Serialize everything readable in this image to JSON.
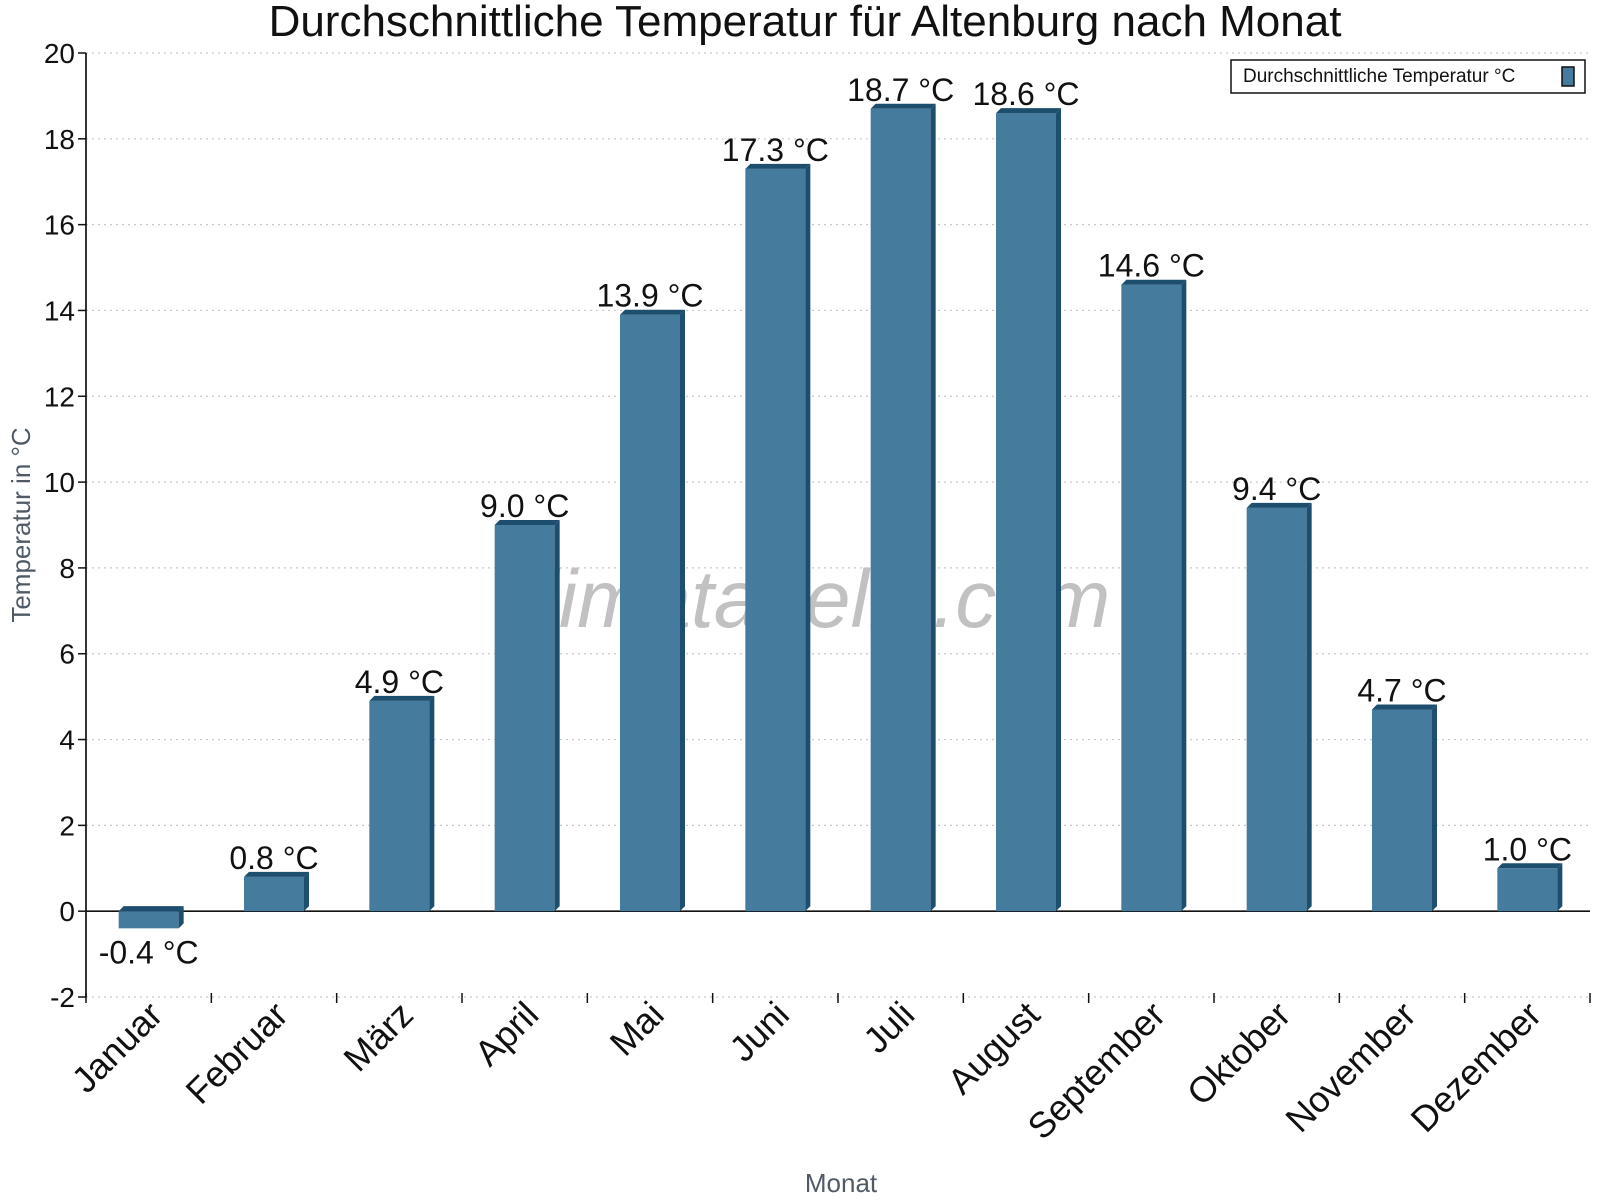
{
  "colors": {
    "bar_front": "#457b9d",
    "bar_side": "#1d4e6e",
    "bar_top": "#1d4e6e",
    "grid": "#c8c8c8",
    "axis": "#111111",
    "watermark": "#8f8f8f"
  },
  "watermark": "klimatabelle.com",
  "chart_data": {
    "type": "bar",
    "title": "Durchschnittliche Temperatur für Altenburg nach Monat",
    "xlabel": "Monat",
    "ylabel": "Temperatur in °C",
    "ylim": [
      -2,
      20
    ],
    "yticks": [
      -2,
      0,
      2,
      4,
      6,
      8,
      10,
      12,
      14,
      16,
      18,
      20
    ],
    "yaxis_direction": "up",
    "grid": true,
    "legend_position": "top-right",
    "categories": [
      "Januar",
      "Februar",
      "März",
      "April",
      "Mai",
      "Juni",
      "Juli",
      "August",
      "September",
      "Oktober",
      "November",
      "Dezember"
    ],
    "series": [
      {
        "name": "Durchschnittliche Temperatur °C",
        "values": [
          -0.4,
          0.8,
          4.9,
          9.0,
          13.9,
          17.3,
          18.7,
          18.6,
          14.6,
          9.4,
          4.7,
          1.0
        ]
      }
    ],
    "data_labels": [
      "-0.4 °C",
      "0.8 °C",
      "4.9 °C",
      "9.0 °C",
      "13.9 °C",
      "17.3 °C",
      "18.7 °C",
      "18.6 °C",
      "14.6 °C",
      "9.4 °C",
      "4.7 °C",
      "1.0 °C"
    ]
  }
}
